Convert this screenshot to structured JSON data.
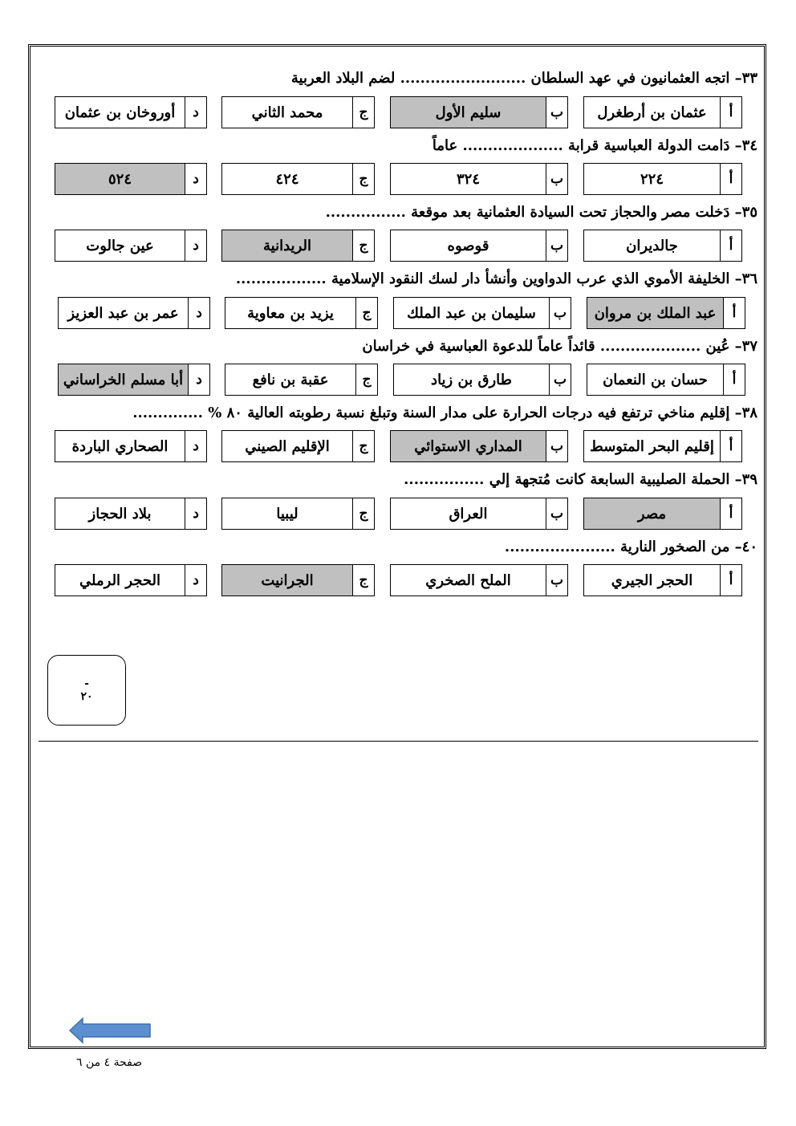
{
  "questions": [
    {
      "title": "٣٣– اتجه العثمانيون في عهد السلطان ......................... لضم البلاد العربية",
      "options": [
        {
          "letter": "أ",
          "text": "عثمان بن أرطغرل"
        },
        {
          "letter": "ب",
          "text": "سليم الأول",
          "correct": true
        },
        {
          "letter": "ج",
          "text": "محمد الثاني"
        },
        {
          "letter": "د",
          "text": "أوروخان بن عثمان"
        }
      ]
    },
    {
      "title": "٣٤– دَامت الدولة العباسية قرابة .................... عاماً",
      "options": [
        {
          "letter": "أ",
          "text": "٢٢٤"
        },
        {
          "letter": "ب",
          "text": "٣٢٤"
        },
        {
          "letter": "ج",
          "text": "٤٢٤"
        },
        {
          "letter": "د",
          "text": "٥٢٤",
          "correct": true
        }
      ]
    },
    {
      "title": "٣٥– دَخلت مصر والحجاز تحت السيادة العثمانية بعد موقعة ................",
      "options": [
        {
          "letter": "أ",
          "text": "جالديران"
        },
        {
          "letter": "ب",
          "text": "قوصوه"
        },
        {
          "letter": "ج",
          "text": "الريدانية",
          "correct": true
        },
        {
          "letter": "د",
          "text": "عين جالوت"
        }
      ]
    },
    {
      "title": "٣٦– الخليفة الأموي الذي عرب الدواوين وأنشأ دار لسك النقود الإسلامية ..................",
      "options": [
        {
          "letter": "أ",
          "text": "عبد الملك بن مروان",
          "correct": true
        },
        {
          "letter": "ب",
          "text": "سليمان بن عبد الملك"
        },
        {
          "letter": "ج",
          "text": "يزيد بن معاوية"
        },
        {
          "letter": "د",
          "text": "عمر بن عبد العزيز"
        }
      ]
    },
    {
      "title": "٣٧– عُين ....................   قائداً عاماً للدعوة العباسية في خراسان",
      "options": [
        {
          "letter": "أ",
          "text": "حسان بن النعمان"
        },
        {
          "letter": "ب",
          "text": "طارق بن زياد"
        },
        {
          "letter": "ج",
          "text": "عقبة بن نافع"
        },
        {
          "letter": "د",
          "text": "أبا مسلم الخراساني",
          "correct": true
        }
      ]
    },
    {
      "title": "٣٨– إقليم مناخي ترتفع فيه درجات الحرارة على مدار السنة وتبلغ نسبة رطوبته العالية ٨٠ % ..............",
      "options": [
        {
          "letter": "أ",
          "text": "إقليم البحر المتوسط"
        },
        {
          "letter": "ب",
          "text": "المداري الاستوائي",
          "correct": true
        },
        {
          "letter": "ج",
          "text": "الإقليم الصيني"
        },
        {
          "letter": "د",
          "text": "الصحاري الباردة"
        }
      ]
    },
    {
      "title": "٣٩– الحملة الصليبية السابعة كانت مُتجهة إلي ................",
      "options": [
        {
          "letter": "أ",
          "text": "مصر",
          "correct": true
        },
        {
          "letter": "ب",
          "text": "العراق"
        },
        {
          "letter": "ج",
          "text": "ليبيا"
        },
        {
          "letter": "د",
          "text": "بلاد الحجاز"
        }
      ]
    },
    {
      "title": "٤٠– من الصخور النارية ......................",
      "options": [
        {
          "letter": "أ",
          "text": "الحجر الجيري"
        },
        {
          "letter": "ب",
          "text": "الملح الصخري"
        },
        {
          "letter": "ج",
          "text": "الجرانيت",
          "correct": true
        },
        {
          "letter": "د",
          "text": "الحجر الرملي"
        }
      ]
    }
  ],
  "score_box": {
    "dash": "-",
    "total": "٢٠"
  },
  "nav": {
    "icon": "arrow-left-icon",
    "color": "#5b8fd0"
  },
  "footer": {
    "page_label": "صفحة ٤ من ٦"
  },
  "colors": {
    "correct_answer_fill": "#c0c0c0"
  }
}
